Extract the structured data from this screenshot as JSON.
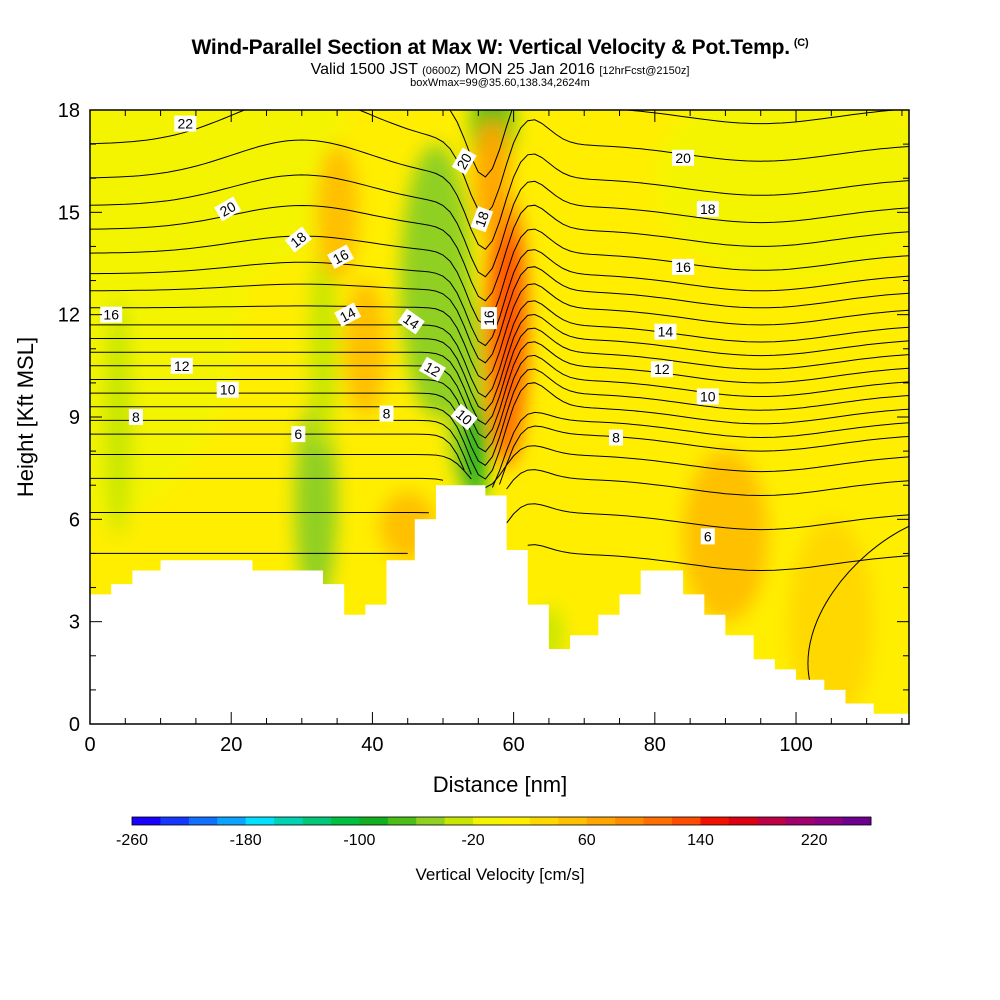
{
  "header": {
    "title": "Wind-Parallel Section at Max W: Vertical Velocity & Pot.Temp.",
    "copyright": "(C)",
    "valid_prefix": "Valid 1500 JST",
    "valid_utc": "(0600Z)",
    "valid_date": "MON 25 Jan 2016",
    "forecast": "[12hrFcst@2150z]",
    "box_info": "boxWmax=99@35.60,138.34,2624m"
  },
  "chart_data": {
    "type": "heatmap",
    "xlabel": "Distance [nm]",
    "ylabel": "Height [Kft MSL]",
    "xlim": [
      0,
      116
    ],
    "ylim": [
      0,
      18
    ],
    "x_ticks": [
      "0",
      "20",
      "40",
      "60",
      "80",
      "100"
    ],
    "y_ticks": [
      "0",
      "3",
      "6",
      "9",
      "12",
      "15",
      "18"
    ],
    "colorbar": {
      "label": "Vertical Velocity [cm/s]",
      "range": [
        -260,
        260
      ],
      "step": 20,
      "tick_labels": [
        "-260",
        "-180",
        "-100",
        "-20",
        "60",
        "140",
        "220"
      ],
      "colors": [
        "#1a00ff",
        "#1438ff",
        "#1270ff",
        "#0ba4ff",
        "#00e0ff",
        "#00d2b4",
        "#00c878",
        "#00c040",
        "#10b020",
        "#4cbe18",
        "#90d020",
        "#c8e600",
        "#f4f400",
        "#ffee00",
        "#ffd800",
        "#ffc000",
        "#ffa600",
        "#ff8c00",
        "#ff6e00",
        "#ff4c00",
        "#f21000",
        "#dc0014",
        "#c00046",
        "#a0006e",
        "#8a0082",
        "#6e0090"
      ]
    },
    "terrain_profile": {
      "x": [
        0,
        3,
        3,
        6,
        6,
        10,
        10,
        23,
        23,
        33,
        33,
        36,
        36,
        39,
        39,
        42,
        42,
        46,
        46,
        49,
        49,
        56,
        56,
        59,
        59,
        62,
        62,
        65,
        65,
        68,
        68,
        72,
        72,
        75,
        75,
        78,
        78,
        84,
        84,
        87,
        87,
        90,
        90,
        94,
        94,
        97,
        97,
        100,
        100,
        104,
        104,
        107,
        107,
        111,
        111,
        116
      ],
      "y": [
        3.8,
        3.8,
        4.1,
        4.1,
        4.5,
        4.5,
        4.8,
        4.8,
        4.5,
        4.5,
        4.1,
        4.1,
        3.2,
        3.2,
        3.5,
        3.5,
        4.8,
        4.8,
        6.0,
        6.0,
        7.0,
        7.0,
        6.7,
        6.7,
        5.1,
        5.1,
        3.5,
        3.5,
        2.2,
        2.2,
        2.6,
        2.6,
        3.2,
        3.2,
        3.8,
        3.8,
        4.5,
        4.5,
        3.8,
        3.8,
        3.2,
        3.2,
        2.6,
        2.6,
        1.9,
        1.9,
        1.6,
        1.6,
        1.3,
        1.3,
        1.0,
        1.0,
        0.6,
        0.6,
        0.3,
        0.3
      ]
    },
    "velocity_cells": [
      {
        "x": 0,
        "y": 13,
        "rx": 22,
        "ry": 7,
        "w": -10
      },
      {
        "x": 20,
        "y": 17,
        "rx": 16,
        "ry": 4,
        "w": -10
      },
      {
        "x": 100,
        "y": 16,
        "rx": 20,
        "ry": 3,
        "w": -10
      },
      {
        "x": 4,
        "y": 9,
        "rx": 2,
        "ry": 3.5,
        "w": -40
      },
      {
        "x": 32,
        "y": 6.5,
        "rx": 3,
        "ry": 3,
        "w": -60
      },
      {
        "x": 33,
        "y": 11,
        "rx": 2,
        "ry": 3,
        "w": -40
      },
      {
        "x": 49,
        "y": 13,
        "rx": 5,
        "ry": 4,
        "w": -50
      },
      {
        "x": 53,
        "y": 10,
        "rx": 2.5,
        "ry": 3,
        "w": -60
      },
      {
        "x": 54.5,
        "y": 8,
        "rx": 1.8,
        "ry": 1.5,
        "w": -90
      },
      {
        "x": 57,
        "y": 17.5,
        "rx": 3,
        "ry": 1.5,
        "w": -70
      },
      {
        "x": 35,
        "y": 15,
        "rx": 3,
        "ry": 2,
        "w": 40
      },
      {
        "x": 39,
        "y": 11,
        "rx": 3,
        "ry": 2,
        "w": 40
      },
      {
        "x": 45,
        "y": 5.8,
        "rx": 4,
        "ry": 1,
        "w": 40
      },
      {
        "x": 59,
        "y": 11.5,
        "rx": 3,
        "ry": 4,
        "w": 100
      },
      {
        "x": 59.5,
        "y": 12,
        "rx": 1.5,
        "ry": 2.5,
        "w": 130
      },
      {
        "x": 57,
        "y": 16,
        "rx": 2.5,
        "ry": 1.8,
        "w": 60
      },
      {
        "x": 90,
        "y": 5.5,
        "rx": 6,
        "ry": 2.5,
        "w": 40
      },
      {
        "x": 105,
        "y": 3,
        "rx": 6,
        "ry": 3,
        "w": 20
      },
      {
        "x": 65,
        "y": 2.6,
        "rx": 2,
        "ry": 0.8,
        "w": -40
      }
    ],
    "theta_contour_labels": [
      {
        "label": "22",
        "x": 13.5,
        "y": 17.6,
        "rot": 0
      },
      {
        "label": "20",
        "x": 19.5,
        "y": 15.1,
        "rot": -30
      },
      {
        "label": "18",
        "x": 29.5,
        "y": 14.2,
        "rot": -38
      },
      {
        "label": "16",
        "x": 35.5,
        "y": 13.7,
        "rot": -28
      },
      {
        "label": "16",
        "x": 3,
        "y": 12.0,
        "rot": 0
      },
      {
        "label": "14",
        "x": 36.5,
        "y": 12.0,
        "rot": -28
      },
      {
        "label": "14",
        "x": 45.5,
        "y": 11.8,
        "rot": 35
      },
      {
        "label": "12",
        "x": 13,
        "y": 10.5,
        "rot": 0
      },
      {
        "label": "12",
        "x": 48.5,
        "y": 10.4,
        "rot": 30
      },
      {
        "label": "10",
        "x": 19.5,
        "y": 9.8,
        "rot": 0
      },
      {
        "label": "10",
        "x": 53,
        "y": 9.0,
        "rot": 40
      },
      {
        "label": "8",
        "x": 6.5,
        "y": 9.0,
        "rot": 0
      },
      {
        "label": "8",
        "x": 42,
        "y": 9.1,
        "rot": 0
      },
      {
        "label": "6",
        "x": 29.5,
        "y": 8.5,
        "rot": 0
      },
      {
        "label": "20",
        "x": 53,
        "y": 16.5,
        "rot": -60
      },
      {
        "label": "18",
        "x": 55.5,
        "y": 14.8,
        "rot": -70
      },
      {
        "label": "16",
        "x": 56.5,
        "y": 11.9,
        "rot": -90
      },
      {
        "label": "20",
        "x": 84,
        "y": 16.6,
        "rot": 0
      },
      {
        "label": "18",
        "x": 87.5,
        "y": 15.1,
        "rot": 0
      },
      {
        "label": "16",
        "x": 84,
        "y": 13.4,
        "rot": 0
      },
      {
        "label": "14",
        "x": 81.5,
        "y": 11.5,
        "rot": 0
      },
      {
        "label": "12",
        "x": 81,
        "y": 10.4,
        "rot": 0
      },
      {
        "label": "10",
        "x": 87.5,
        "y": 9.6,
        "rot": 0
      },
      {
        "label": "8",
        "x": 74.5,
        "y": 8.4,
        "rot": 0
      },
      {
        "label": "6",
        "x": 87.5,
        "y": 5.5,
        "rot": 0
      }
    ]
  }
}
